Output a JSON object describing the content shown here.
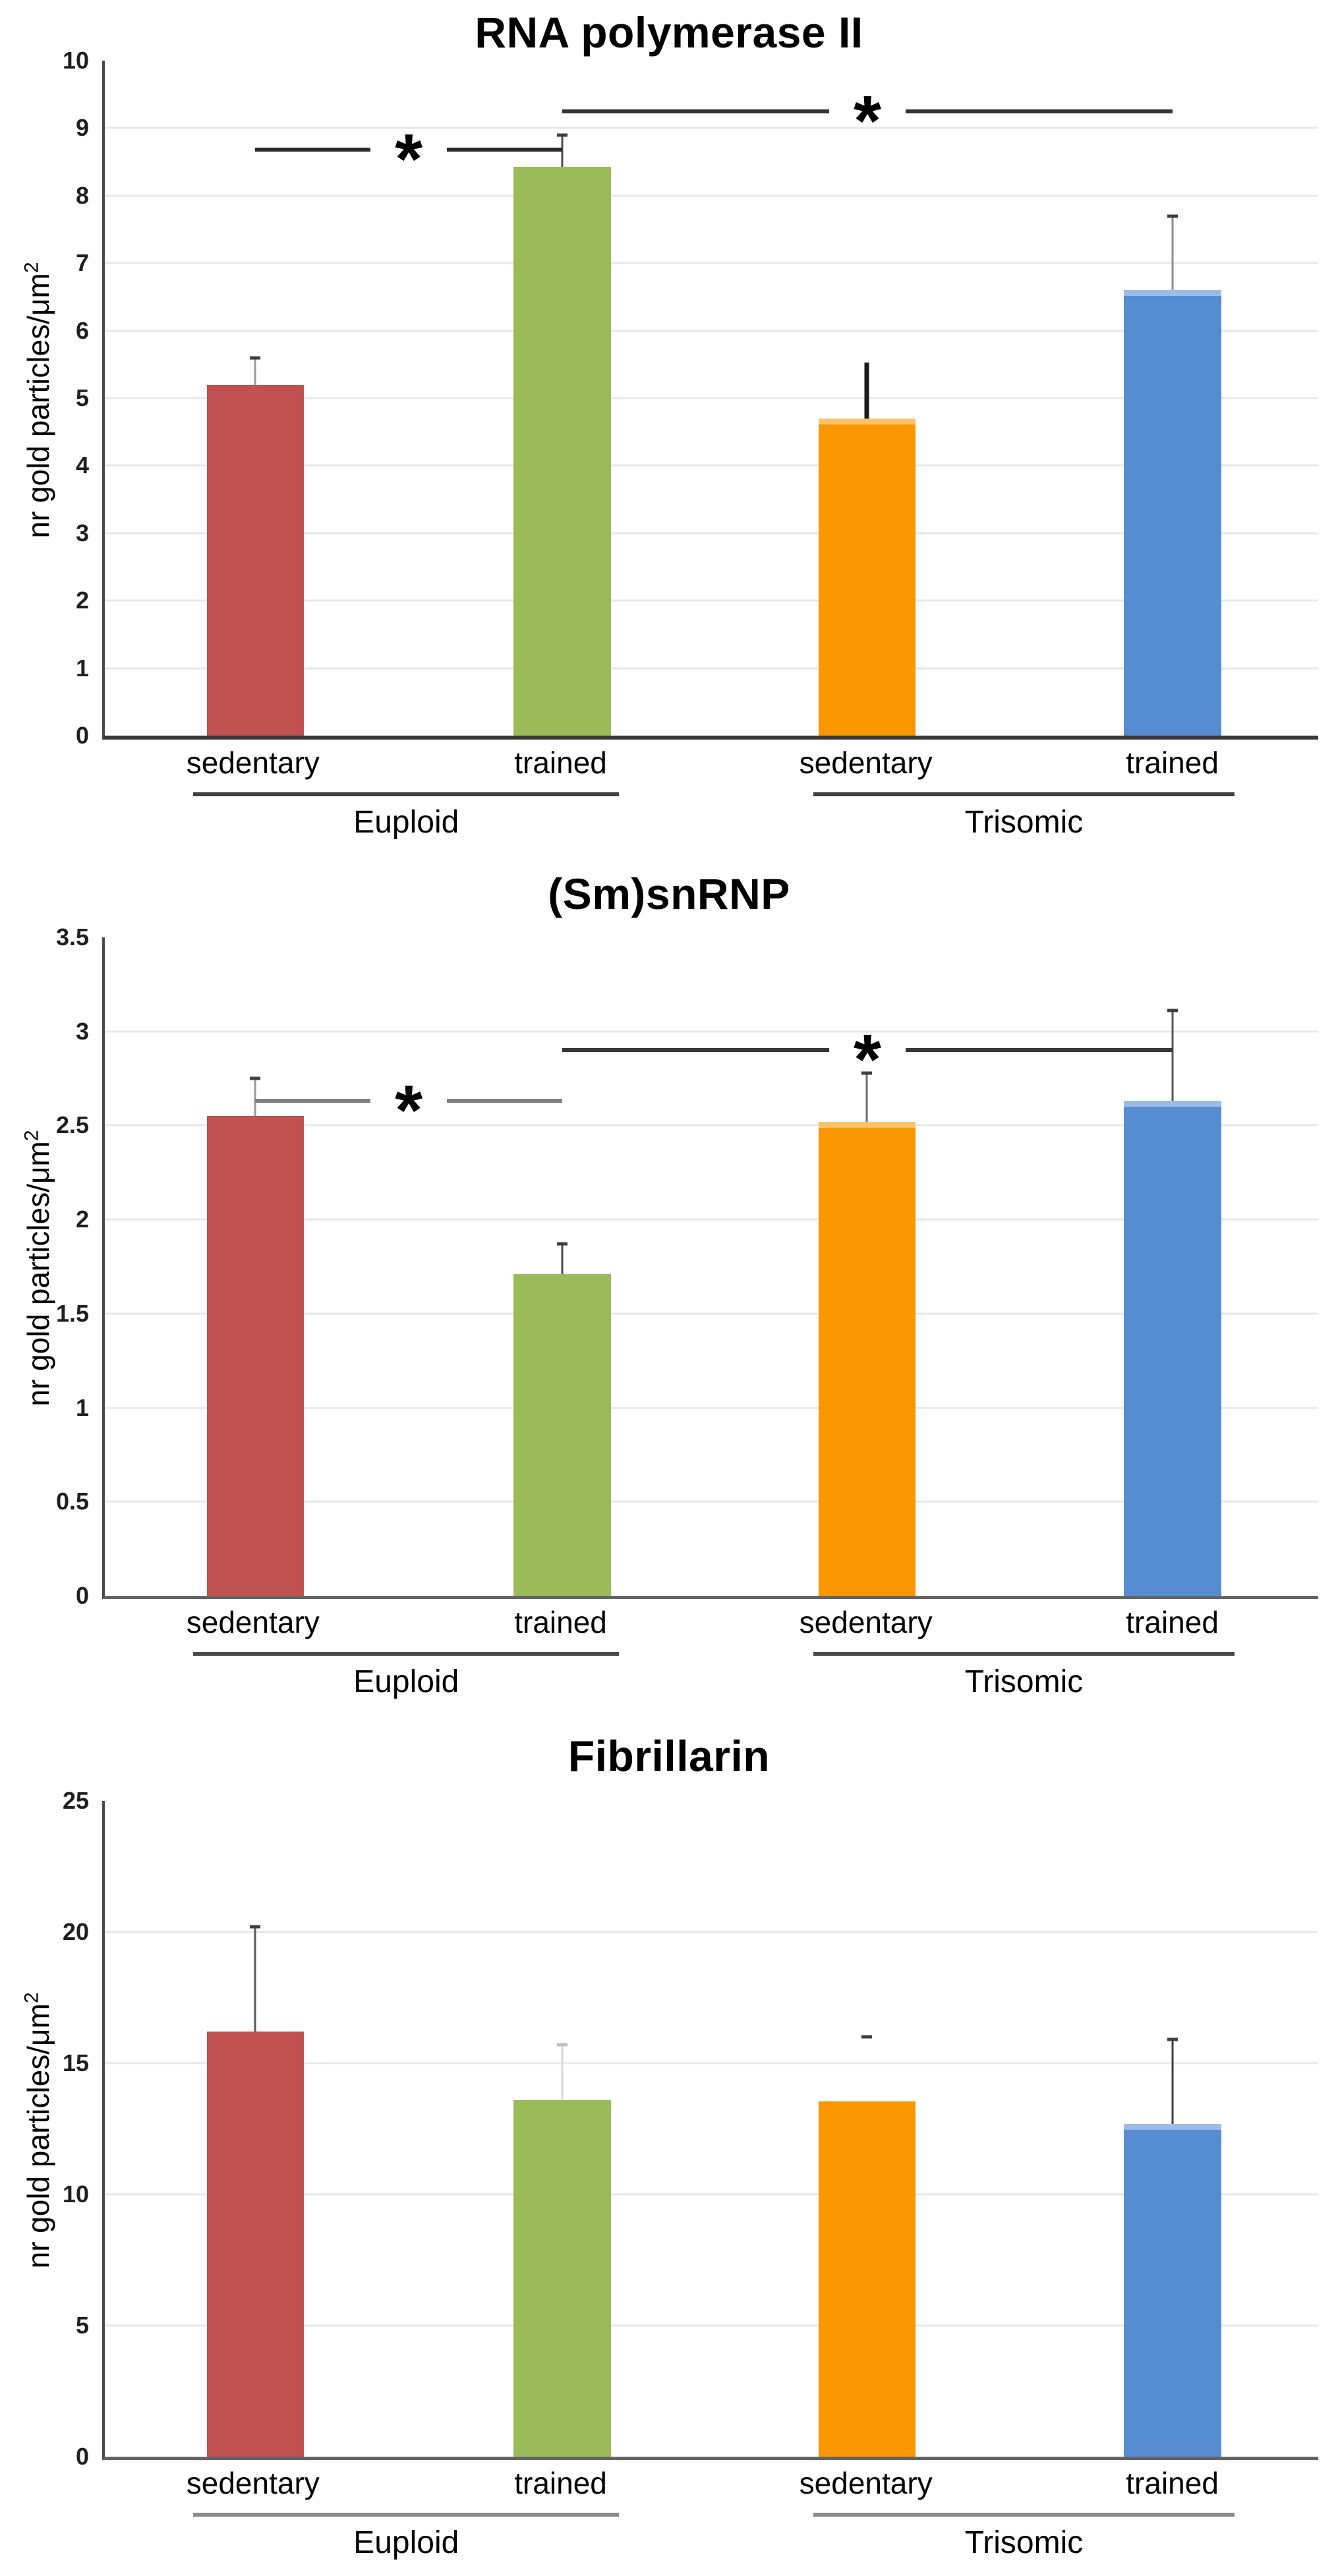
{
  "chart_data": [
    {
      "type": "bar",
      "title": "RNA polymerase II",
      "ylabel": "nr gold particles/μm",
      "ylabel_sup": "2",
      "ylim": [
        0,
        10
      ],
      "ytick_step": 1,
      "yticks": [
        "0",
        "1",
        "2",
        "3",
        "4",
        "5",
        "6",
        "7",
        "8",
        "9",
        "10"
      ],
      "categories": [
        "sedentary",
        "trained",
        "sedentary",
        "trained"
      ],
      "group_labels": [
        "Euploid",
        "Trisomic"
      ],
      "grid": true,
      "legend": "none",
      "bars": [
        {
          "group": "Euploid",
          "category": "sedentary",
          "value": 5.2,
          "error_top": 5.6,
          "color": "#bf5150",
          "err_line_color": "#9a9a9a"
        },
        {
          "group": "Euploid",
          "category": "trained",
          "value": 8.43,
          "error_top": 8.9,
          "color": "#9bbb59",
          "err_line_color": "#4a4a4a"
        },
        {
          "group": "Trisomic",
          "category": "sedentary",
          "value": 4.7,
          "error_top": 5.53,
          "color": "#fa9700",
          "err_line_color": "#1a1a1a",
          "err_line_width": 7,
          "err_cap": false,
          "top_highlight": true
        },
        {
          "group": "Trisomic",
          "category": "trained",
          "value": 6.6,
          "error_top": 7.7,
          "color": "#568cd2",
          "err_line_color": "#8f8f8f",
          "top_highlight": true
        }
      ],
      "significance": [
        {
          "from_bar": 0,
          "to_bar": 1,
          "y": 8.68,
          "label": "*",
          "color": "#2d2d2d"
        },
        {
          "from_bar": 1,
          "to_bar": 3,
          "y": 9.25,
          "label": "*",
          "color": "#333333"
        }
      ]
    },
    {
      "type": "bar",
      "title": "(Sm)snRNP",
      "ylabel": "nr gold particles/μm",
      "ylabel_sup": "2",
      "ylim": [
        0,
        3.5
      ],
      "ytick_step": 0.5,
      "yticks": [
        "0",
        "0.5",
        "1",
        "1.5",
        "2",
        "2.5",
        "3",
        "3.5"
      ],
      "categories": [
        "sedentary",
        "trained",
        "sedentary",
        "trained"
      ],
      "group_labels": [
        "Euploid",
        "Trisomic"
      ],
      "grid": true,
      "legend": "none",
      "bars": [
        {
          "group": "Euploid",
          "category": "sedentary",
          "value": 2.55,
          "error_top": 2.75,
          "color": "#bf5150",
          "err_line_color": "#9a9a9a"
        },
        {
          "group": "Euploid",
          "category": "trained",
          "value": 1.71,
          "error_top": 1.87,
          "color": "#9bbb59",
          "err_line_color": "#4a4a4a"
        },
        {
          "group": "Trisomic",
          "category": "sedentary",
          "value": 2.52,
          "error_top": 2.78,
          "color": "#fa9700",
          "err_line_color": "#6b6b6b",
          "top_highlight": true
        },
        {
          "group": "Trisomic",
          "category": "trained",
          "value": 2.63,
          "error_top": 3.11,
          "color": "#568cd2",
          "err_line_color": "#555555",
          "top_highlight": true
        }
      ],
      "significance": [
        {
          "from_bar": 0,
          "to_bar": 1,
          "y": 2.63,
          "label": "*",
          "color": "#7f7f7f"
        },
        {
          "from_bar": 1,
          "to_bar": 3,
          "y": 2.9,
          "label": "*",
          "color": "#383838"
        }
      ]
    },
    {
      "type": "bar",
      "title": "Fibrillarin",
      "ylabel": "nr gold particles/μm",
      "ylabel_sup": "2",
      "ylim": [
        0,
        25
      ],
      "ytick_step": 5,
      "yticks": [
        "0",
        "5",
        "10",
        "15",
        "20",
        "25"
      ],
      "categories": [
        "sedentary",
        "trained",
        "sedentary",
        "trained"
      ],
      "group_labels": [
        "Euploid",
        "Trisomic"
      ],
      "grid": true,
      "legend": "none",
      "bars": [
        {
          "group": "Euploid",
          "category": "sedentary",
          "value": 16.2,
          "error_top": 20.2,
          "color": "#bf5150",
          "err_line_color": "#5a5a5a"
        },
        {
          "group": "Euploid",
          "category": "trained",
          "value": 13.6,
          "error_top": 15.7,
          "color": "#9bbb59",
          "err_line_color": "#d9d9d9",
          "err_cap_color": "#bfbfbf"
        },
        {
          "group": "Trisomic",
          "category": "sedentary",
          "value": 13.55,
          "error_top": 16.0,
          "color": "#fa9700",
          "err_line": false
        },
        {
          "group": "Trisomic",
          "category": "trained",
          "value": 12.7,
          "error_top": 15.9,
          "color": "#568cd2",
          "err_line_color": "#3f3f3f",
          "top_highlight": true
        }
      ],
      "significance": []
    }
  ]
}
